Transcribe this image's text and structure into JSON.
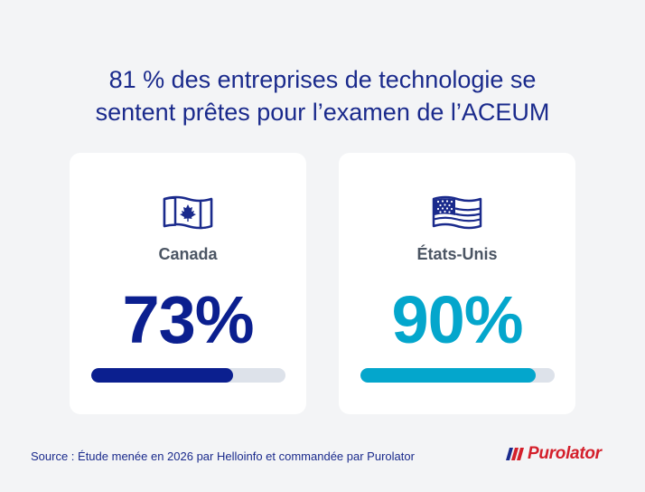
{
  "title": {
    "line1": "81 % des entreprises de technologie se",
    "line2": "sentent prêtes pour l’examen de l’ACEUM"
  },
  "cards": [
    {
      "country": "Canada",
      "percent_label": "73%",
      "progress": 0.73,
      "flag_icon": "canada-flag-icon",
      "color": "#0b1f8f"
    },
    {
      "country": "États-Unis",
      "percent_label": "90%",
      "progress": 0.9,
      "flag_icon": "usa-flag-icon",
      "color": "#04a6cc"
    }
  ],
  "source": "Source : Étude menée en 2026 par Helloinfo et commandée par Purolator",
  "logo": {
    "text": "Purolator",
    "color": "#d41f2b",
    "accent": "#1a2a8c"
  }
}
